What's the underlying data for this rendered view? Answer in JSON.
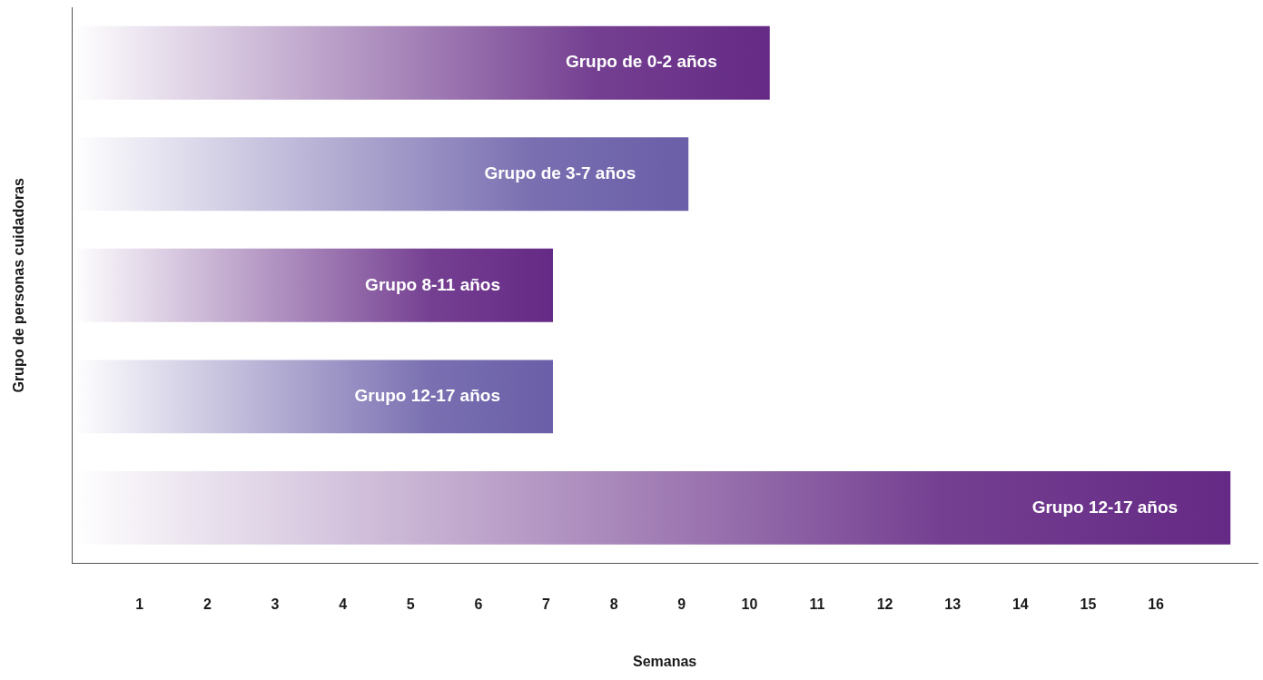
{
  "chart_data": {
    "type": "bar",
    "orientation": "horizontal",
    "xlabel": "Semanas",
    "ylabel": "Grupo de personas cuidadoras",
    "categories": [
      "Grupo de 0-2 años",
      "Grupo de 3-7 años",
      "Grupo 8-11 años",
      "Grupo 12-17 años",
      "Grupo 12-17 años"
    ],
    "values": [
      10.3,
      9.1,
      7.1,
      7.1,
      17.1
    ],
    "colors": [
      "#652a85",
      "#6a5fa8",
      "#652a85",
      "#6a5fa8",
      "#652a85"
    ],
    "xlim": [
      0,
      17.5
    ],
    "xticks": [
      1,
      2,
      3,
      4,
      5,
      6,
      7,
      8,
      9,
      10,
      11,
      12,
      13,
      14,
      15,
      16
    ],
    "grid": false,
    "legend": false
  }
}
